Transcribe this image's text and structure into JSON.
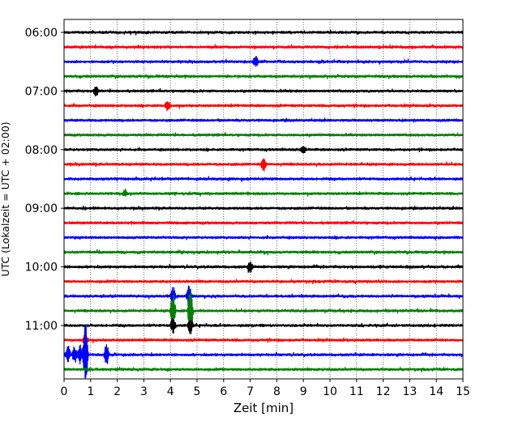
{
  "chart_data": {
    "type": "line",
    "title": "",
    "xlabel": "Zeit  [min]",
    "ylabel": "UTC (Lokalzeit = UTC + 02:00)",
    "xlim": [
      0,
      15
    ],
    "x_ticks": [
      "0",
      "1",
      "2",
      "3",
      "4",
      "5",
      "6",
      "7",
      "8",
      "9",
      "10",
      "11",
      "12",
      "13",
      "14",
      "15"
    ],
    "y_ticks": [
      "06:00",
      "07:00",
      "08:00",
      "09:00",
      "10:00",
      "11:00"
    ],
    "row_start": "06:00",
    "row_interval_min": 15,
    "grid": "vertical dotted at each minute",
    "colors": [
      "#000000",
      "#ff0000",
      "#0000ff",
      "#008000"
    ],
    "series": [
      {
        "start": "06:00",
        "color": "#000000",
        "events": []
      },
      {
        "start": "06:15",
        "color": "#ff0000",
        "events": []
      },
      {
        "start": "06:30",
        "color": "#0000ff",
        "events": [
          {
            "t": 7.2,
            "amp": 0.5
          }
        ]
      },
      {
        "start": "06:45",
        "color": "#008000",
        "events": []
      },
      {
        "start": "07:00",
        "color": "#000000",
        "events": [
          {
            "t": 1.2,
            "amp": 0.4
          }
        ]
      },
      {
        "start": "07:15",
        "color": "#ff0000",
        "events": [
          {
            "t": 3.9,
            "amp": 0.4
          }
        ]
      },
      {
        "start": "07:30",
        "color": "#0000ff",
        "events": []
      },
      {
        "start": "07:45",
        "color": "#008000",
        "events": []
      },
      {
        "start": "08:00",
        "color": "#000000",
        "events": [
          {
            "t": 9.0,
            "amp": 0.4
          }
        ]
      },
      {
        "start": "08:15",
        "color": "#ff0000",
        "events": [
          {
            "t": 7.5,
            "amp": 0.6
          }
        ]
      },
      {
        "start": "08:30",
        "color": "#0000ff",
        "events": []
      },
      {
        "start": "08:45",
        "color": "#008000",
        "events": [
          {
            "t": 2.3,
            "amp": 0.3
          }
        ]
      },
      {
        "start": "09:00",
        "color": "#000000",
        "events": []
      },
      {
        "start": "09:15",
        "color": "#ff0000",
        "events": []
      },
      {
        "start": "09:30",
        "color": "#0000ff",
        "events": []
      },
      {
        "start": "09:45",
        "color": "#008000",
        "events": []
      },
      {
        "start": "10:00",
        "color": "#000000",
        "events": [
          {
            "t": 7.0,
            "amp": 0.6
          }
        ]
      },
      {
        "start": "10:15",
        "color": "#ff0000",
        "events": []
      },
      {
        "start": "10:30",
        "color": "#0000ff",
        "events": [
          {
            "t": 4.1,
            "amp": 0.8
          },
          {
            "t": 4.7,
            "amp": 1.0
          }
        ]
      },
      {
        "start": "10:45",
        "color": "#008000",
        "events": [
          {
            "t": 4.1,
            "amp": 1.8
          },
          {
            "t": 4.75,
            "amp": 2.5
          }
        ]
      },
      {
        "start": "11:00",
        "color": "#000000",
        "events": [
          {
            "t": 4.1,
            "amp": 0.8
          },
          {
            "t": 4.75,
            "amp": 0.8
          }
        ]
      },
      {
        "start": "11:15",
        "color": "#ff0000",
        "events": [
          {
            "t": 0.8,
            "amp": 0.6
          }
        ]
      },
      {
        "start": "11:30",
        "color": "#0000ff",
        "events": [
          {
            "t": 0.15,
            "amp": 0.8
          },
          {
            "t": 0.4,
            "amp": 0.8
          },
          {
            "t": 0.6,
            "amp": 0.7
          },
          {
            "t": 0.8,
            "amp": 3.2
          },
          {
            "t": 1.6,
            "amp": 0.9
          }
        ]
      },
      {
        "start": "11:45",
        "color": "#008000",
        "events": []
      }
    ]
  }
}
